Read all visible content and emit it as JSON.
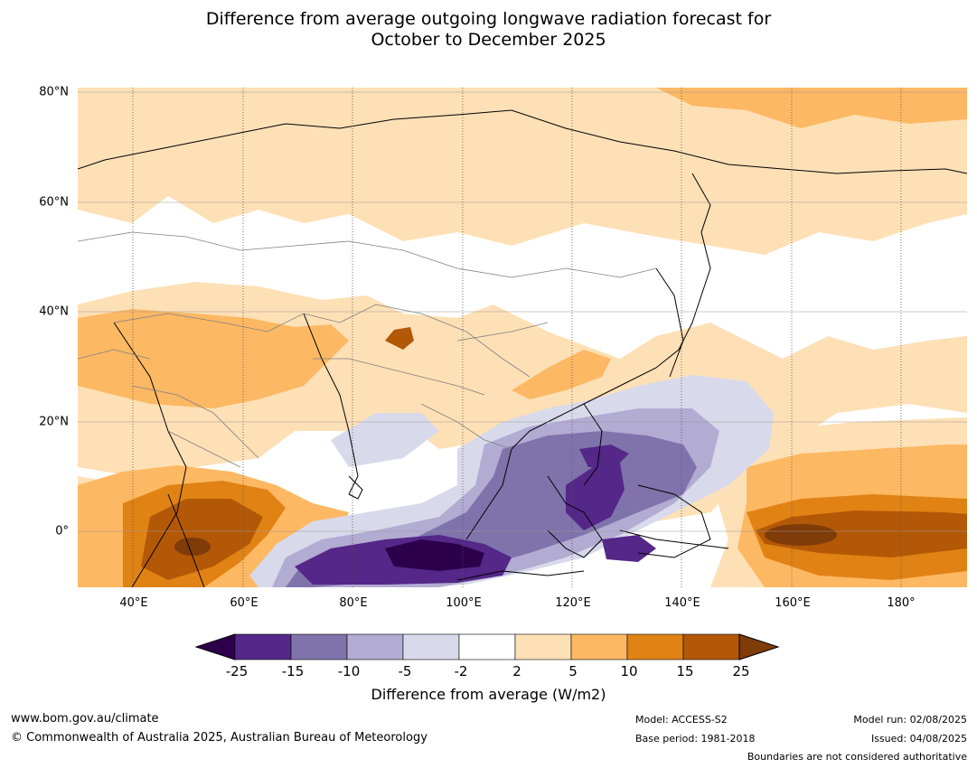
{
  "title": {
    "line1": "Difference from average outgoing longwave radiation forecast for",
    "line2": "October to December 2025"
  },
  "map": {
    "lat_labels": [
      "80°N",
      "60°N",
      "40°N",
      "20°N",
      "0°"
    ],
    "lon_labels": [
      "40°E",
      "60°E",
      "80°E",
      "100°E",
      "120°E",
      "140°E",
      "160°E",
      "180°"
    ],
    "palette": {
      "lt-25": "#2d004b",
      "m25_m15": "#542788",
      "m15_m10": "#8073ac",
      "m10_m5": "#b2abd2",
      "m5_m2": "#d8daeb",
      "m2_2": "#ffffff",
      "p2_5": "#fee0b6",
      "p5_10": "#fdb863",
      "p10_15": "#e08214",
      "p15_25": "#b35806",
      "gt25": "#7f3b08"
    }
  },
  "colorbar": {
    "ticks": [
      "-25",
      "-15",
      "-10",
      "-5",
      "-2",
      "2",
      "5",
      "10",
      "15",
      "25"
    ],
    "colors": [
      "#2d004b",
      "#542788",
      "#8073ac",
      "#b2abd2",
      "#d8daeb",
      "#ffffff",
      "#fee0b6",
      "#fdb863",
      "#e08214",
      "#b35806",
      "#7f3b08"
    ],
    "label": "Difference from average (W/m2)"
  },
  "footer": {
    "url": "www.bom.gov.au/climate",
    "copyright": "© Commonwealth of Australia 2025, Australian Bureau of Meteorology",
    "model": "Model: ACCESS-S2",
    "base_period": "Base period: 1981-2018",
    "model_run": "Model run: 02/08/2025",
    "issued": "Issued: 04/08/2025",
    "disclaimer": "Boundaries are not considered authoritative"
  }
}
